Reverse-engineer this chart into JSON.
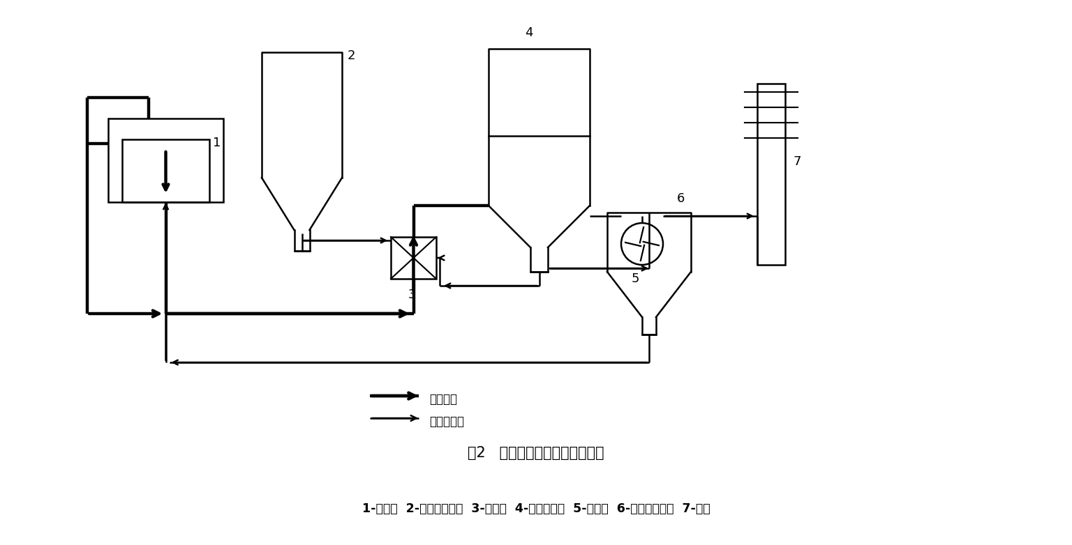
{
  "title_fig": "图2   电解烟气干法净化工艺流程",
  "caption": "1-电解槽  2-新鲜氧化铝仓  3-反应器  4-袋式除尘器  5-引风机  6-载氟氧化铝仓  7-烟囱",
  "legend_smoke": "烟气流程",
  "legend_alumina": "氧化铝流程",
  "bg_color": "#ffffff",
  "lc": "#000000",
  "lw": 1.8,
  "thick_lw": 3.2
}
